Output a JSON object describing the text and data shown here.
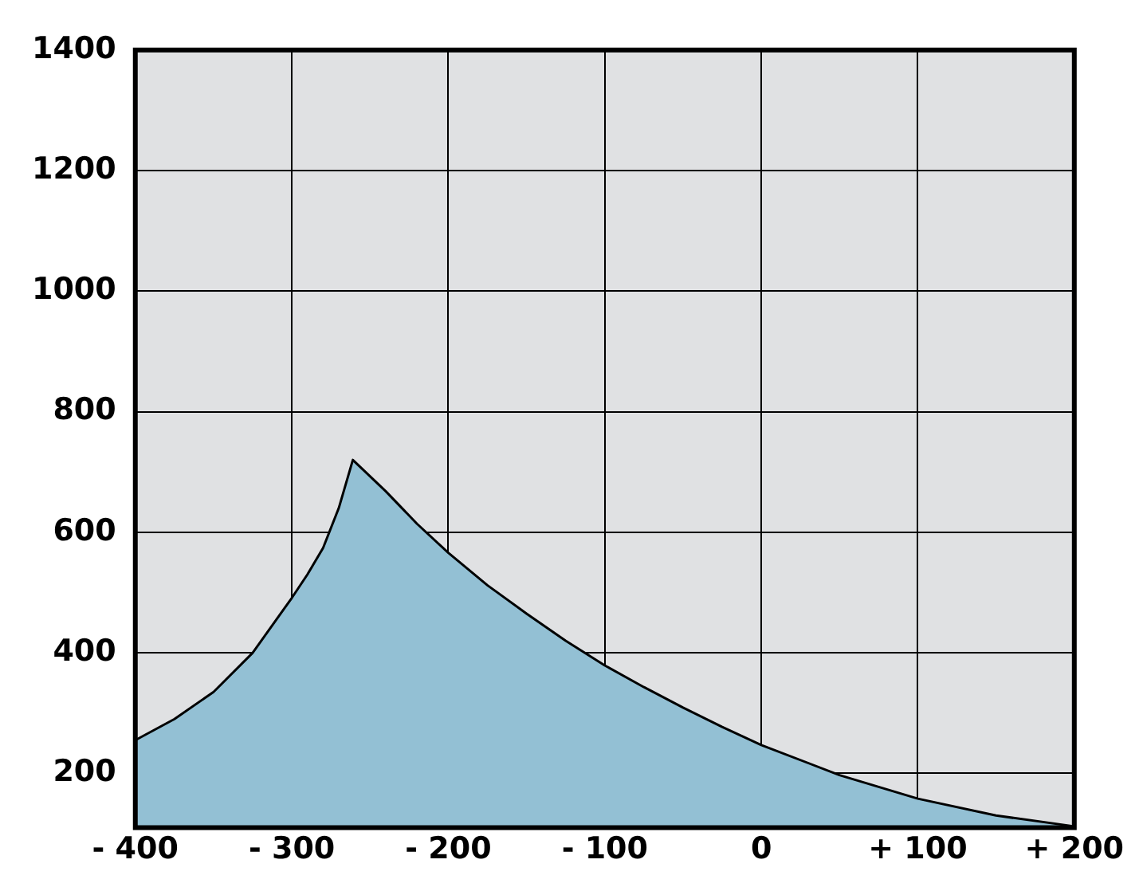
{
  "chart_data": {
    "type": "area",
    "x": [
      -400,
      -375,
      -350,
      -325,
      -300,
      -290,
      -280,
      -270,
      -261,
      -240,
      -220,
      -200,
      -175,
      -150,
      -125,
      -100,
      -75,
      -50,
      -25,
      0,
      50,
      100,
      150,
      200
    ],
    "series": [
      {
        "color": "#93c0d4",
        "values": [
          255,
          290,
          335,
          400,
          491,
          530,
          574,
          640,
          720,
          668,
          614,
          566,
          512,
          465,
          420,
          379,
          343,
          309,
          277,
          247,
          197,
          158,
          130,
          112
        ]
      }
    ],
    "xlim": [
      -400,
      200
    ],
    "xticks": [
      {
        "value": -400,
        "label": "- 400"
      },
      {
        "value": -300,
        "label": "- 300"
      },
      {
        "value": -200,
        "label": "- 200"
      },
      {
        "value": -100,
        "label": "- 100"
      },
      0,
      {
        "value": 100,
        "label": "+ 100"
      },
      {
        "value": 200,
        "label": "+ 200"
      }
    ],
    "ylim": [
      110,
      1400
    ],
    "yticks": [
      200,
      400,
      600,
      800,
      1000,
      1200,
      1400
    ],
    "grid": true,
    "legend": false
  }
}
